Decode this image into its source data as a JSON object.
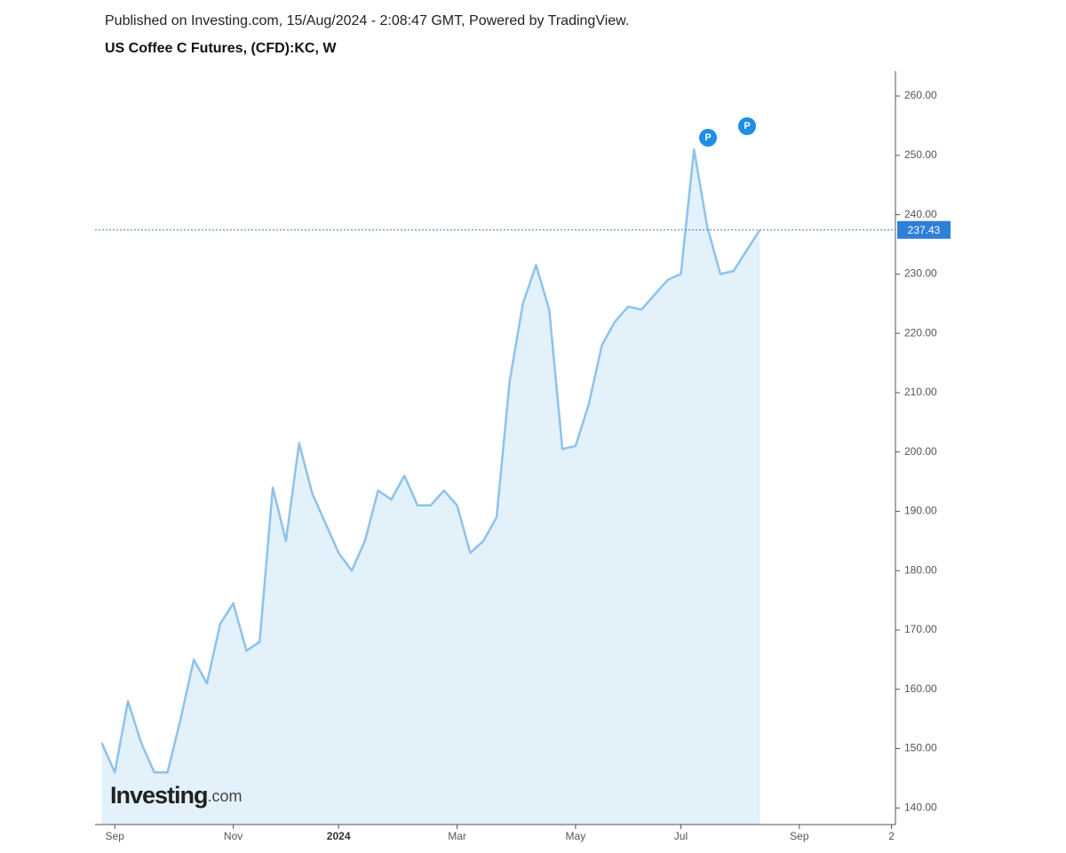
{
  "chart_data": {
    "type": "area",
    "title": "US Coffee C Futures, (CFD):KC, W",
    "subtitle": "Published on Investing.com, 15/Aug/2024 - 2:08:47 GMT, Powered by TradingView.",
    "watermark": "Investing",
    "watermark_suffix": ".com",
    "color": "#8ec2ec",
    "fill": "#e2f1fa",
    "values": [
      151,
      146,
      158,
      151,
      146,
      146,
      155,
      165,
      161,
      171,
      174.5,
      166.5,
      168,
      194,
      185,
      201.5,
      193,
      188,
      183,
      180,
      185,
      193.5,
      192,
      196,
      191,
      191,
      193.5,
      191,
      183,
      185,
      189,
      212,
      225,
      231.5,
      224,
      200.5,
      201,
      208,
      218,
      222,
      224.5,
      224,
      226.5,
      229,
      230,
      251,
      238,
      230,
      230.5,
      234,
      237.43
    ],
    "xlim": [
      -0.5,
      60.3
    ],
    "xticks": [
      {
        "value": 1,
        "label": "Sep"
      },
      {
        "value": 10,
        "label": "Nov"
      },
      {
        "value": 18,
        "label": "2024"
      },
      {
        "value": 27,
        "label": "Mar"
      },
      {
        "value": 36,
        "label": "May"
      },
      {
        "value": 44,
        "label": "Jul"
      },
      {
        "value": 53,
        "label": "Sep"
      },
      {
        "value": 60,
        "label": "2"
      }
    ],
    "ylim": [
      137.2,
      264.2
    ],
    "yticks": [
      {
        "value": 140,
        "label": "140.00"
      },
      {
        "value": 150,
        "label": "150.00"
      },
      {
        "value": 160,
        "label": "160.00"
      },
      {
        "value": 170,
        "label": "170.00"
      },
      {
        "value": 180,
        "label": "180.00"
      },
      {
        "value": 190,
        "label": "190.00"
      },
      {
        "value": 200,
        "label": "200.00"
      },
      {
        "value": 210,
        "label": "210.00"
      },
      {
        "value": 220,
        "label": "220.00"
      },
      {
        "value": 230,
        "label": "230.00"
      },
      {
        "value": 240,
        "label": "240.00"
      },
      {
        "value": 250,
        "label": "250.00"
      },
      {
        "value": 260,
        "label": "260.00"
      }
    ]
  }
}
